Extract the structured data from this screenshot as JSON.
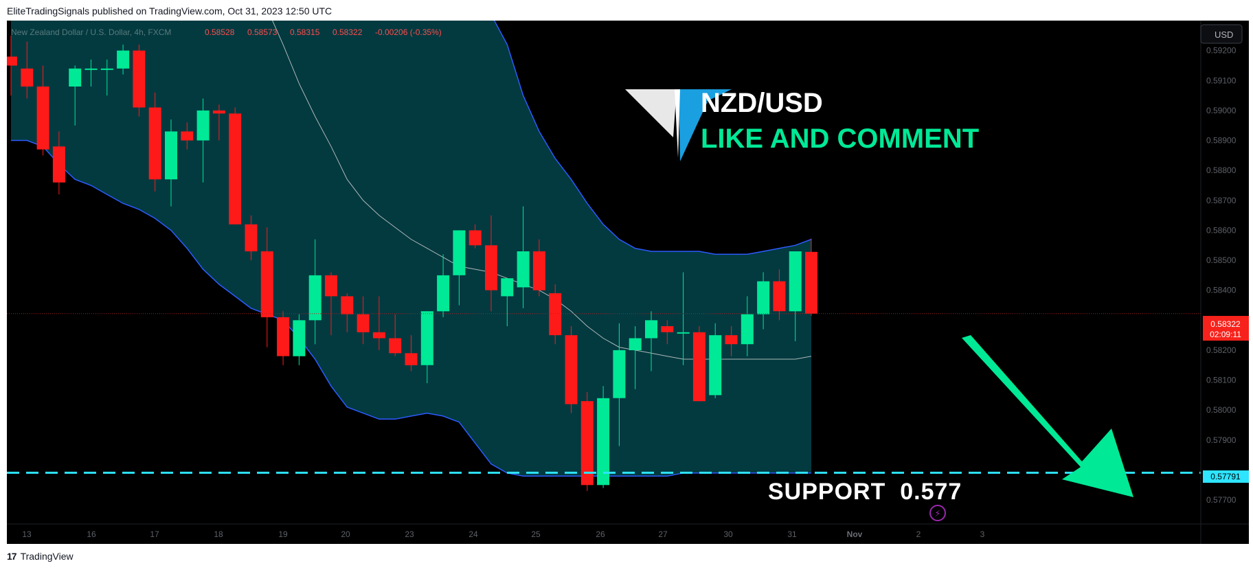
{
  "header": {
    "published": "EliteTradingSignals published on TradingView.com, Oct 31, 2023 12:50 UTC"
  },
  "footer": {
    "logo": "17",
    "brand": "TradingView"
  },
  "legend": {
    "symbol": "New Zealand Dollar / U.S. Dollar, 4h, FXCM",
    "open": "0.58528",
    "high": "0.58573",
    "low": "0.58315",
    "close": "0.58322",
    "change": "-0.00206 (-0.35%)"
  },
  "currency_label": "USD",
  "price_badge": {
    "price": "0.58322",
    "countdown": "02:09:11"
  },
  "support_badge": "0.57791",
  "overlay": {
    "title": "NZD/USD",
    "subtitle": "LIKE AND COMMENT",
    "support_text": "SUPPORT  0.577"
  },
  "chart_data": {
    "type": "candlestick",
    "instrument": "NZD/USD",
    "timeframe": "4h",
    "y_ticks": [
      "0.59200",
      "0.59100",
      "0.59000",
      "0.58900",
      "0.58800",
      "0.58700",
      "0.58600",
      "0.58500",
      "0.58400",
      "0.58300",
      "0.58200",
      "0.58100",
      "0.58000",
      "0.57900",
      "0.57700"
    ],
    "ylim": [
      0.5762,
      0.593
    ],
    "x_ticks": [
      "13",
      "16",
      "17",
      "18",
      "19",
      "20",
      "23",
      "24",
      "25",
      "26",
      "27",
      "30",
      "31",
      "Nov",
      "2",
      "3"
    ],
    "candles": [
      {
        "o": 0.5918,
        "h": 0.5925,
        "l": 0.5905,
        "c": 0.5915
      },
      {
        "o": 0.5914,
        "h": 0.5923,
        "l": 0.5904,
        "c": 0.5908
      },
      {
        "o": 0.5908,
        "h": 0.5915,
        "l": 0.5885,
        "c": 0.5887
      },
      {
        "o": 0.5888,
        "h": 0.5893,
        "l": 0.5872,
        "c": 0.5876
      },
      {
        "o": 0.5908,
        "h": 0.5915,
        "l": 0.5895,
        "c": 0.5914
      },
      {
        "o": 0.5914,
        "h": 0.5917,
        "l": 0.5908,
        "c": 0.5914
      },
      {
        "o": 0.5914,
        "h": 0.5917,
        "l": 0.5905,
        "c": 0.5914
      },
      {
        "o": 0.5914,
        "h": 0.5922,
        "l": 0.5912,
        "c": 0.592
      },
      {
        "o": 0.592,
        "h": 0.5922,
        "l": 0.5898,
        "c": 0.5901
      },
      {
        "o": 0.5901,
        "h": 0.5906,
        "l": 0.5873,
        "c": 0.5877
      },
      {
        "o": 0.5877,
        "h": 0.5897,
        "l": 0.5868,
        "c": 0.5893
      },
      {
        "o": 0.5893,
        "h": 0.5896,
        "l": 0.5887,
        "c": 0.589
      },
      {
        "o": 0.589,
        "h": 0.5904,
        "l": 0.5876,
        "c": 0.59
      },
      {
        "o": 0.59,
        "h": 0.5902,
        "l": 0.589,
        "c": 0.5899
      },
      {
        "o": 0.5899,
        "h": 0.5901,
        "l": 0.5862,
        "c": 0.5862
      },
      {
        "o": 0.5862,
        "h": 0.5865,
        "l": 0.585,
        "c": 0.5853
      },
      {
        "o": 0.5853,
        "h": 0.5861,
        "l": 0.5821,
        "c": 0.5831
      },
      {
        "o": 0.5831,
        "h": 0.5833,
        "l": 0.5815,
        "c": 0.5818
      },
      {
        "o": 0.5818,
        "h": 0.5832,
        "l": 0.5815,
        "c": 0.583
      },
      {
        "o": 0.583,
        "h": 0.5857,
        "l": 0.5822,
        "c": 0.5845
      },
      {
        "o": 0.5845,
        "h": 0.5846,
        "l": 0.5825,
        "c": 0.5838
      },
      {
        "o": 0.5838,
        "h": 0.5839,
        "l": 0.5826,
        "c": 0.5832
      },
      {
        "o": 0.5832,
        "h": 0.5838,
        "l": 0.5822,
        "c": 0.5826
      },
      {
        "o": 0.5826,
        "h": 0.5838,
        "l": 0.582,
        "c": 0.5824
      },
      {
        "o": 0.5824,
        "h": 0.5832,
        "l": 0.5818,
        "c": 0.5819
      },
      {
        "o": 0.5819,
        "h": 0.5825,
        "l": 0.5813,
        "c": 0.5815
      },
      {
        "o": 0.5815,
        "h": 0.5833,
        "l": 0.5809,
        "c": 0.5833
      },
      {
        "o": 0.5833,
        "h": 0.5852,
        "l": 0.5831,
        "c": 0.5845
      },
      {
        "o": 0.5845,
        "h": 0.586,
        "l": 0.5835,
        "c": 0.586
      },
      {
        "o": 0.586,
        "h": 0.5862,
        "l": 0.5854,
        "c": 0.5855
      },
      {
        "o": 0.5855,
        "h": 0.5865,
        "l": 0.5833,
        "c": 0.584
      },
      {
        "o": 0.5838,
        "h": 0.5844,
        "l": 0.5828,
        "c": 0.5844
      },
      {
        "o": 0.5841,
        "h": 0.5868,
        "l": 0.5834,
        "c": 0.5853
      },
      {
        "o": 0.5853,
        "h": 0.5857,
        "l": 0.5838,
        "c": 0.584
      },
      {
        "o": 0.5839,
        "h": 0.5842,
        "l": 0.5822,
        "c": 0.5825
      },
      {
        "o": 0.5825,
        "h": 0.5828,
        "l": 0.5799,
        "c": 0.5802
      },
      {
        "o": 0.5803,
        "h": 0.5806,
        "l": 0.5773,
        "c": 0.5775
      },
      {
        "o": 0.5775,
        "h": 0.5808,
        "l": 0.5774,
        "c": 0.5804
      },
      {
        "o": 0.5804,
        "h": 0.5829,
        "l": 0.5788,
        "c": 0.582
      },
      {
        "o": 0.582,
        "h": 0.5828,
        "l": 0.5807,
        "c": 0.5824
      },
      {
        "o": 0.5824,
        "h": 0.5833,
        "l": 0.5813,
        "c": 0.583
      },
      {
        "o": 0.5828,
        "h": 0.583,
        "l": 0.5822,
        "c": 0.5826
      },
      {
        "o": 0.5826,
        "h": 0.5846,
        "l": 0.5815,
        "c": 0.5826
      },
      {
        "o": 0.5826,
        "h": 0.5828,
        "l": 0.5803,
        "c": 0.5803
      },
      {
        "o": 0.5805,
        "h": 0.5829,
        "l": 0.5804,
        "c": 0.5825
      },
      {
        "o": 0.5825,
        "h": 0.5828,
        "l": 0.5818,
        "c": 0.5822
      },
      {
        "o": 0.5822,
        "h": 0.5838,
        "l": 0.5818,
        "c": 0.5832
      },
      {
        "o": 0.5832,
        "h": 0.5846,
        "l": 0.5827,
        "c": 0.5843
      },
      {
        "o": 0.5843,
        "h": 0.5847,
        "l": 0.583,
        "c": 0.5833
      },
      {
        "o": 0.5833,
        "h": 0.5853,
        "l": 0.5823,
        "c": 0.5853
      },
      {
        "o": 0.58528,
        "h": 0.58573,
        "l": 0.58315,
        "c": 0.58322
      }
    ],
    "bollinger": {
      "upper": [
        0.5935,
        0.5935,
        0.5935,
        0.5935,
        0.5935,
        0.5935,
        0.5935,
        0.5935,
        0.5935,
        0.5935,
        0.5935,
        0.5935,
        0.5935,
        0.5935,
        0.5935,
        0.5935,
        0.5935,
        0.5935,
        0.5935,
        0.5935,
        0.5935,
        0.5935,
        0.5935,
        0.5935,
        0.5935,
        0.5935,
        0.5935,
        0.5935,
        0.5935,
        0.5935,
        0.5932,
        0.5922,
        0.5905,
        0.5893,
        0.5884,
        0.5877,
        0.5869,
        0.5862,
        0.5857,
        0.5854,
        0.5853,
        0.5853,
        0.5853,
        0.5853,
        0.5852,
        0.5852,
        0.5852,
        0.5853,
        0.5854,
        0.5855,
        0.5857
      ],
      "middle": [
        0.5935,
        0.5935,
        0.5935,
        0.5935,
        0.5935,
        0.5935,
        0.5935,
        0.5935,
        0.5935,
        0.5935,
        0.5935,
        0.5935,
        0.5935,
        0.5935,
        0.5935,
        0.5935,
        0.5934,
        0.5922,
        0.5909,
        0.5898,
        0.5888,
        0.5877,
        0.587,
        0.5865,
        0.5861,
        0.5857,
        0.5854,
        0.5851,
        0.5848,
        0.5847,
        0.5846,
        0.5844,
        0.5842,
        0.584,
        0.5837,
        0.5833,
        0.5828,
        0.5824,
        0.5821,
        0.582,
        0.5819,
        0.5818,
        0.5817,
        0.5817,
        0.5817,
        0.5817,
        0.5817,
        0.5817,
        0.5817,
        0.5817,
        0.5818
      ],
      "lower": [
        0.589,
        0.589,
        0.5888,
        0.5882,
        0.5877,
        0.5875,
        0.5872,
        0.5869,
        0.5867,
        0.5864,
        0.586,
        0.5854,
        0.5847,
        0.5842,
        0.5838,
        0.5834,
        0.5832,
        0.583,
        0.5824,
        0.5817,
        0.5808,
        0.5801,
        0.5799,
        0.5797,
        0.5797,
        0.5798,
        0.5799,
        0.5798,
        0.5796,
        0.5789,
        0.5782,
        0.5779,
        0.5778,
        0.5778,
        0.5778,
        0.5778,
        0.5778,
        0.5778,
        0.5778,
        0.5778,
        0.5778,
        0.5778,
        0.5779,
        0.5779,
        0.5779,
        0.5779,
        0.5779,
        0.5779,
        0.5779,
        0.5779,
        0.5779
      ]
    },
    "support_level": 0.57791,
    "current_price": 0.58322,
    "colors": {
      "bull": "#00e996",
      "bear": "#ff1a1a",
      "band_fill": "#023a40",
      "band_line": "#2d5bff",
      "ma_line": "#b0b8b8",
      "support_line": "#2ee4ff",
      "arrow": "#00e996",
      "price_badge": "#f7221b",
      "background": "#000000"
    }
  }
}
